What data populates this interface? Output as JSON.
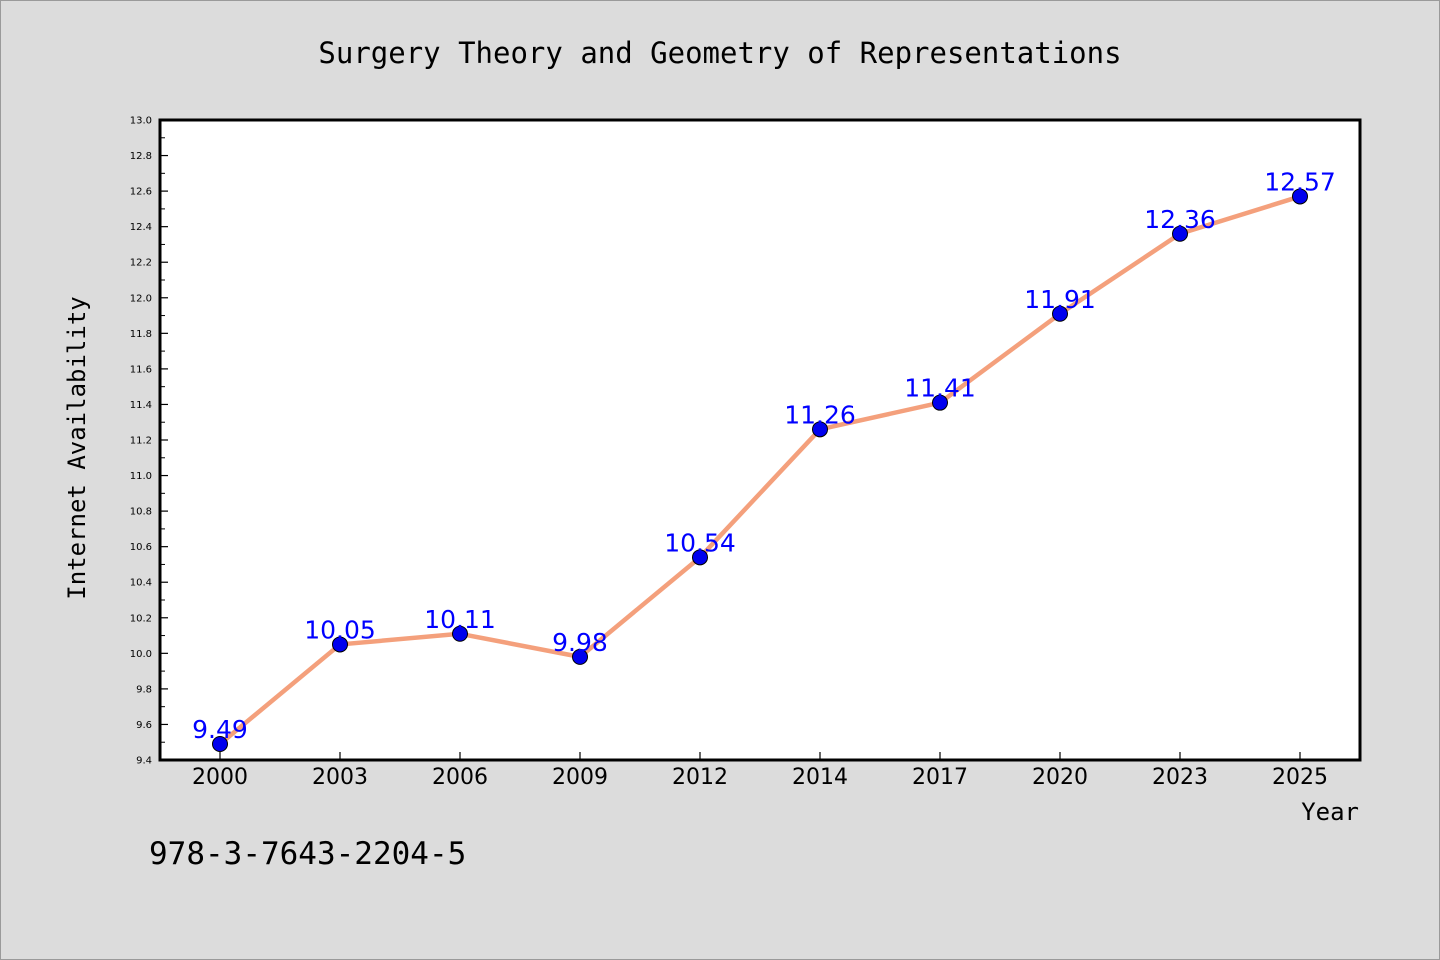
{
  "chart_data": {
    "type": "line",
    "title": "Surgery Theory and Geometry of Representations",
    "xlabel": "Year",
    "ylabel": "Internet Availability",
    "categories": [
      "2000",
      "2003",
      "2006",
      "2009",
      "2012",
      "2014",
      "2017",
      "2020",
      "2023",
      "2025"
    ],
    "series": [
      {
        "values": [
          9.49,
          10.05,
          10.11,
          9.98,
          10.54,
          11.26,
          11.41,
          11.91,
          12.36,
          12.57
        ]
      }
    ],
    "data_labels": [
      "9.49",
      "10.05",
      "10.11",
      "9.98",
      "10.54",
      "11.26",
      "11.41",
      "11.91",
      "12.36",
      "12.57"
    ],
    "ylim": [
      9.4,
      13.0
    ],
    "yticks": [
      9.4,
      9.6,
      9.8,
      10.0,
      10.2,
      10.4,
      10.6,
      10.8,
      11.0,
      11.2,
      11.4,
      11.6,
      11.8,
      12.0,
      12.2,
      12.4,
      12.6,
      12.8,
      13.0
    ],
    "grid": false,
    "legend": "none",
    "colors": {
      "line": "#f4a07c",
      "marker": "#0000ee",
      "label": "#0000ff",
      "background": "#dcdcdc",
      "plot_background": "#ffffff"
    }
  },
  "footer": {
    "isbn": "978-3-7643-2204-5"
  }
}
